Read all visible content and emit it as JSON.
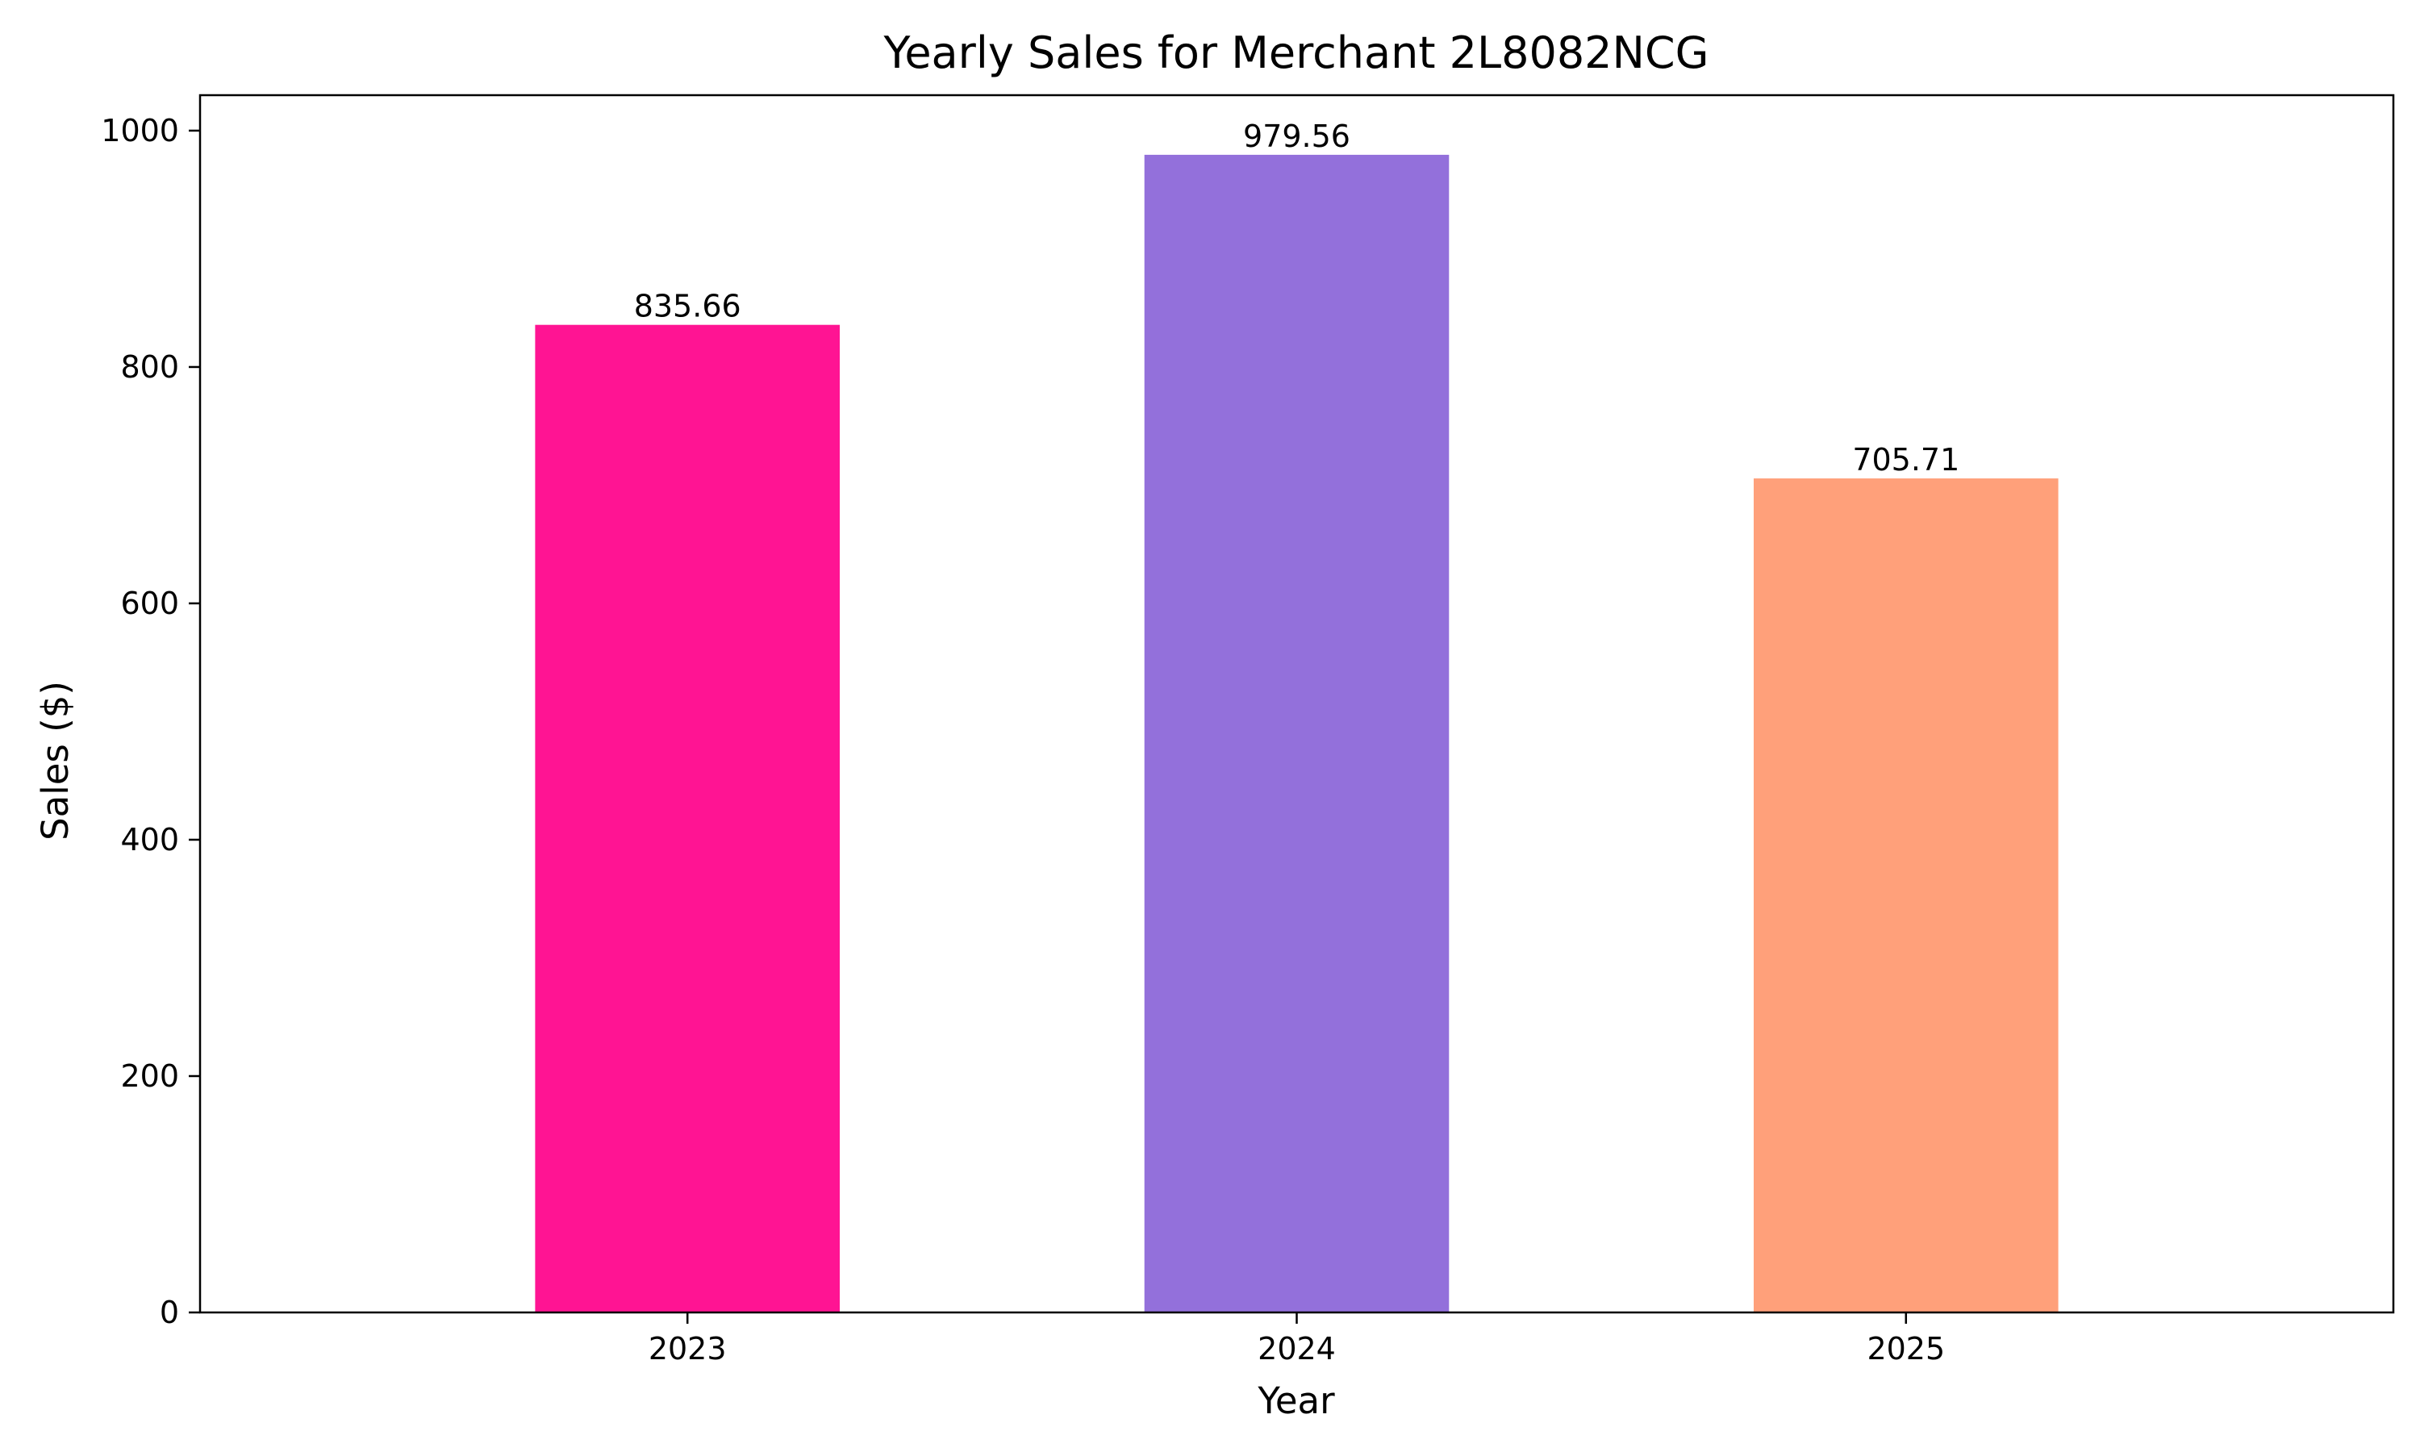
{
  "chart_data": {
    "type": "bar",
    "title": "Yearly Sales for Merchant 2L8082NCG",
    "xlabel": "Year",
    "ylabel": "Sales ($)",
    "categories": [
      "2023",
      "2024",
      "2025"
    ],
    "values": [
      835.66,
      979.56,
      705.71
    ],
    "value_labels": [
      "835.66",
      "979.56",
      "705.71"
    ],
    "colors": [
      "#ff1493",
      "#9370db",
      "#ffa07a"
    ],
    "ylim": [
      0,
      1030
    ],
    "yticks": [
      0,
      200,
      400,
      600,
      800,
      1000
    ],
    "ytick_labels": [
      "0",
      "200",
      "400",
      "600",
      "800",
      "1000"
    ],
    "grid": false,
    "legend": "none"
  }
}
